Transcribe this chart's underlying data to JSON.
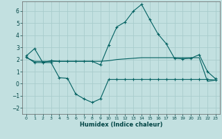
{
  "xlabel": "Humidex (Indice chaleur)",
  "background_color": "#c2e0e0",
  "grid_color": "#a8cccc",
  "line_color": "#006060",
  "xlim": [
    -0.5,
    23.5
  ],
  "ylim": [
    -2.5,
    6.8
  ],
  "xticks": [
    0,
    1,
    2,
    3,
    4,
    5,
    6,
    7,
    8,
    9,
    10,
    11,
    12,
    13,
    14,
    15,
    16,
    17,
    18,
    19,
    20,
    21,
    22,
    23
  ],
  "yticks": [
    -2,
    -1,
    0,
    1,
    2,
    3,
    4,
    5,
    6
  ],
  "series1_x": [
    0,
    1,
    2,
    3,
    4,
    5,
    6,
    7,
    8,
    9,
    10,
    11,
    12,
    13,
    14,
    15,
    16,
    17,
    18,
    19,
    20,
    21,
    22,
    23
  ],
  "series1_y": [
    2.3,
    2.9,
    1.75,
    1.9,
    1.85,
    1.85,
    1.85,
    1.85,
    1.85,
    1.55,
    3.2,
    4.7,
    5.1,
    6.0,
    6.55,
    5.3,
    4.1,
    3.3,
    2.1,
    2.05,
    2.1,
    2.4,
    1.0,
    0.4
  ],
  "series2_x": [
    0,
    1,
    2,
    3,
    4,
    5,
    6,
    7,
    8,
    9,
    10,
    11,
    12,
    13,
    14,
    15,
    16,
    17,
    18,
    19,
    20,
    21,
    22,
    23
  ],
  "series2_y": [
    2.2,
    1.75,
    1.75,
    1.75,
    0.5,
    0.45,
    -0.85,
    -1.25,
    -1.55,
    -1.25,
    0.35,
    0.35,
    0.35,
    0.35,
    0.35,
    0.35,
    0.35,
    0.35,
    0.35,
    0.35,
    0.35,
    0.35,
    0.35,
    0.3
  ],
  "series3_x": [
    0,
    1,
    2,
    3,
    4,
    5,
    6,
    7,
    8,
    9,
    10,
    11,
    12,
    13,
    14,
    15,
    16,
    17,
    18,
    19,
    20,
    21,
    22,
    23
  ],
  "series3_y": [
    2.15,
    1.85,
    1.85,
    1.85,
    1.85,
    1.85,
    1.85,
    1.85,
    1.85,
    1.85,
    1.9,
    2.0,
    2.05,
    2.1,
    2.15,
    2.15,
    2.15,
    2.15,
    2.15,
    2.15,
    2.15,
    2.15,
    0.2,
    0.3
  ]
}
